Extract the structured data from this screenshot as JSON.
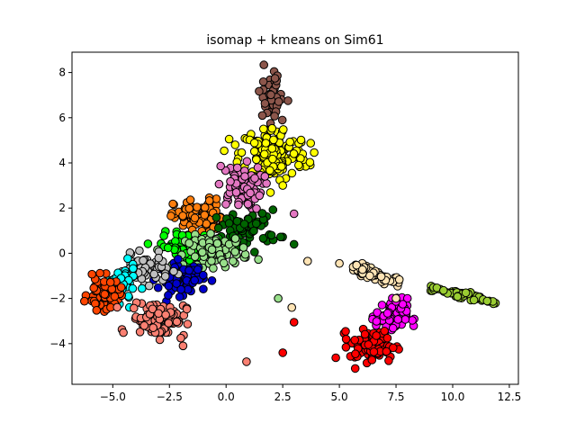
{
  "chart_data": {
    "type": "scatter",
    "title": "isomap + kmeans on Sim61",
    "xlabel": "",
    "ylabel": "",
    "xlim": [
      -6.8,
      12.9
    ],
    "ylim": [
      -5.8,
      8.9
    ],
    "xticks": [
      -5.0,
      -2.5,
      0.0,
      2.5,
      5.0,
      7.5,
      10.0,
      12.5
    ],
    "yticks": [
      -4,
      -2,
      0,
      2,
      4,
      6,
      8
    ],
    "xtick_labels": [
      "−5.0",
      "−2.5",
      "0.0",
      "2.5",
      "5.0",
      "7.5",
      "10.0",
      "12.5"
    ],
    "ytick_labels": [
      "−4",
      "−2",
      "0",
      "2",
      "4",
      "6",
      "8"
    ],
    "grid": false,
    "legend": "none",
    "marker_edge_color": "#000000",
    "clusters": [
      {
        "color": "#8c564b",
        "center": [
          2.0,
          6.9
        ],
        "spread": [
          0.3,
          0.75
        ],
        "n": 40
      },
      {
        "color": "#ffff00",
        "center": [
          2.1,
          4.4
        ],
        "spread": [
          0.75,
          0.6
        ],
        "n": 150
      },
      {
        "color": "#e377c2",
        "center": [
          0.6,
          2.9
        ],
        "spread": [
          0.5,
          0.5
        ],
        "n": 80
      },
      {
        "color": "#ff7f0e",
        "center": [
          -1.2,
          1.6
        ],
        "spread": [
          0.55,
          0.4
        ],
        "n": 80
      },
      {
        "color": "#006400",
        "center": [
          0.9,
          1.1
        ],
        "spread": [
          0.7,
          0.4
        ],
        "n": 70
      },
      {
        "color": "#00ff00",
        "center": [
          -1.8,
          0.3
        ],
        "spread": [
          0.55,
          0.3
        ],
        "n": 80
      },
      {
        "color": "#98df8a",
        "center": [
          -0.4,
          0.1
        ],
        "spread": [
          0.7,
          0.35
        ],
        "n": 80
      },
      {
        "color": "#0000cd",
        "center": [
          -2.0,
          -1.1
        ],
        "spread": [
          0.5,
          0.35
        ],
        "n": 80
      },
      {
        "color": "#c0c0c0",
        "center": [
          -3.6,
          -0.7
        ],
        "spread": [
          0.55,
          0.3
        ],
        "n": 70
      },
      {
        "color": "#00ffff",
        "center": [
          -4.6,
          -1.4
        ],
        "spread": [
          0.3,
          0.4
        ],
        "n": 60
      },
      {
        "color": "#ff4500",
        "center": [
          -5.4,
          -1.8
        ],
        "spread": [
          0.35,
          0.35
        ],
        "n": 70
      },
      {
        "color": "#fa8072",
        "center": [
          -3.0,
          -2.9
        ],
        "spread": [
          0.6,
          0.4
        ],
        "n": 100
      },
      {
        "color": "#ff00ff",
        "center": [
          7.3,
          -2.8
        ],
        "spread": [
          0.35,
          0.4
        ],
        "n": 80
      },
      {
        "color": "#ff0000",
        "center": [
          6.5,
          -4.1
        ],
        "spread": [
          0.5,
          0.35
        ],
        "n": 80
      }
    ],
    "bands": [
      {
        "color": "#ffe4b5",
        "from": [
          5.6,
          -0.55
        ],
        "to": [
          7.7,
          -1.35
        ],
        "width": 0.12,
        "n": 70
      },
      {
        "color": "#9acd32",
        "from": [
          9.0,
          -1.5
        ],
        "to": [
          11.9,
          -2.2
        ],
        "width": 0.08,
        "n": 60
      }
    ],
    "points": [
      {
        "x": 0.4,
        "y": 4.8,
        "color": "#ffff00"
      },
      {
        "x": 2.5,
        "y": 3.0,
        "color": "#ffff00"
      },
      {
        "x": 3.0,
        "y": 1.75,
        "color": "#e377c2"
      },
      {
        "x": 3.0,
        "y": 0.4,
        "color": "#006400"
      },
      {
        "x": 2.0,
        "y": 0.8,
        "color": "#006400"
      },
      {
        "x": 3.6,
        "y": -0.35,
        "color": "#ffe4b5"
      },
      {
        "x": 0.3,
        "y": -0.35,
        "color": "#98df8a"
      },
      {
        "x": 2.3,
        "y": -2.0,
        "color": "#98df8a"
      },
      {
        "x": 2.9,
        "y": -2.4,
        "color": "#ffe4b5"
      },
      {
        "x": 3.0,
        "y": -3.05,
        "color": "#ff0000"
      },
      {
        "x": 2.5,
        "y": -4.4,
        "color": "#ff0000"
      },
      {
        "x": 0.9,
        "y": -4.8,
        "color": "#fa8072"
      },
      {
        "x": -1.9,
        "y": -4.1,
        "color": "#fa8072"
      },
      {
        "x": 5.7,
        "y": -5.1,
        "color": "#ff0000"
      },
      {
        "x": 5.0,
        "y": -0.45,
        "color": "#ffe4b5"
      },
      {
        "x": 5.3,
        "y": -3.8,
        "color": "#ff0000"
      },
      {
        "x": 7.5,
        "y": -2.0,
        "color": "#ffe4b5"
      },
      {
        "x": 1.6,
        "y": 6.1,
        "color": "#8c564b"
      },
      {
        "x": 1.65,
        "y": 5.5,
        "color": "#ffff00"
      },
      {
        "x": 3.2,
        "y": 3.9,
        "color": "#ffff00"
      }
    ]
  }
}
